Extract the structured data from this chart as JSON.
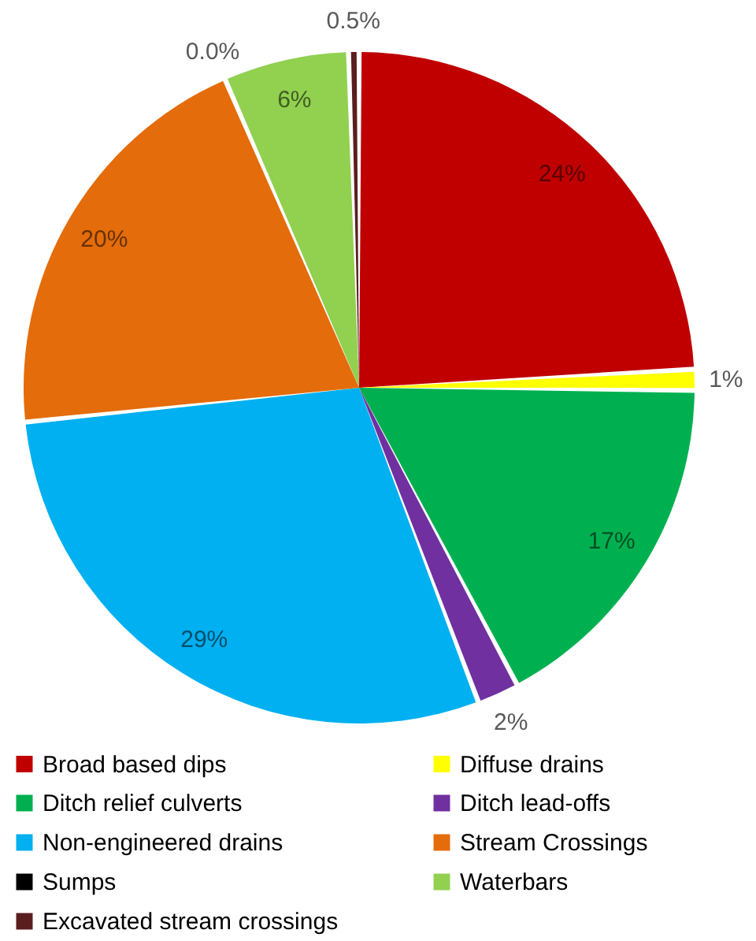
{
  "chart_data": {
    "type": "pie",
    "categories": [
      "Broad based dips",
      "Diffuse drains",
      "Ditch relief culverts",
      "Ditch lead-offs",
      "Non-engineered drains",
      "Stream Crossings",
      "Sumps",
      "Waterbars",
      "Excavated stream crossings"
    ],
    "values": [
      24,
      1,
      17,
      2,
      29,
      20,
      0.0,
      6,
      0.5
    ],
    "value_labels": [
      "24%",
      "1%",
      "17%",
      "2%",
      "29%",
      "20%",
      "0.0%",
      "6%",
      "0.5%"
    ],
    "colors": [
      "#c00000",
      "#ffff00",
      "#00b050",
      "#7030a0",
      "#00b0f0",
      "#e46c0a",
      "#000000",
      "#92d050",
      "#5a1e1e"
    ],
    "legend": "bottom"
  }
}
